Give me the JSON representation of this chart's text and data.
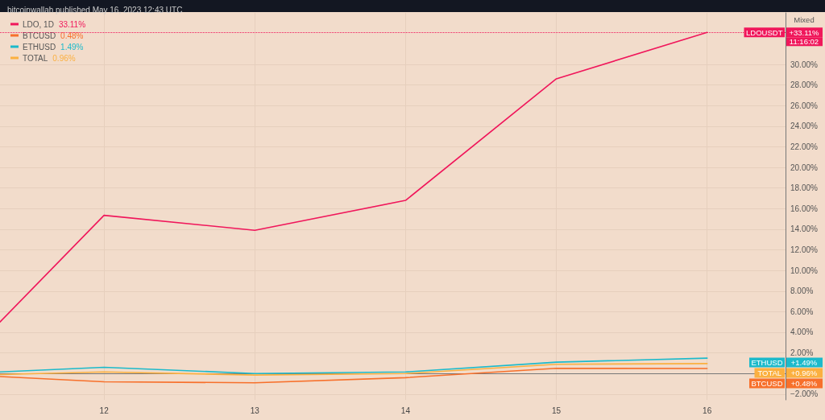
{
  "chart_data": {
    "type": "line",
    "title": "bitcoinwallah published May 16, 2023 12:43 UTC",
    "x": [
      11.31,
      12,
      13,
      14,
      15,
      16
    ],
    "series": [
      {
        "name": "LDO, 1D",
        "color": "#f0175b",
        "values": [
          5.0,
          15.35,
          13.9,
          16.8,
          28.6,
          33.11
        ]
      },
      {
        "name": "BTCUSD",
        "color": "#f7702b",
        "values": [
          -0.3,
          -0.8,
          -0.9,
          -0.4,
          0.5,
          0.48
        ]
      },
      {
        "name": "ETHUSD",
        "color": "#1cbacb",
        "values": [
          0.15,
          0.6,
          0.0,
          0.15,
          1.1,
          1.49
        ]
      },
      {
        "name": "TOTAL",
        "color": "#fbb040",
        "values": [
          -0.1,
          0.15,
          -0.15,
          0.0,
          0.9,
          0.96
        ]
      }
    ],
    "annotations": [
      "33.11%",
      "0.48%",
      "1.49%",
      "0.96%",
      "Mixed",
      "11:16:02",
      "LDOUSDT",
      "+33.11%",
      "BTCUSD",
      "+0.48%",
      "ETHUSD",
      "+1.49%",
      "TOTAL",
      "+0.96%"
    ],
    "ref_lines": [
      {
        "axis": "y",
        "value": 33.11,
        "label": null,
        "color": "#f0175b",
        "line_style": "dotted"
      }
    ],
    "xlim": [
      11.31,
      16.52
    ],
    "xticks": [
      12,
      13,
      14,
      15,
      16
    ],
    "ylim": [
      -2.56,
      35
    ],
    "yticks": [
      {
        "value": -2,
        "label": "−2.00%"
      },
      {
        "value": 2,
        "label": "2.00%"
      },
      {
        "value": 4,
        "label": "4.00%"
      },
      {
        "value": 6,
        "label": "6.00%"
      },
      {
        "value": 8,
        "label": "8.00%"
      },
      {
        "value": 10,
        "label": "10.00%"
      },
      {
        "value": 12,
        "label": "12.00%"
      },
      {
        "value": 14,
        "label": "14.00%"
      },
      {
        "value": 16,
        "label": "16.00%"
      },
      {
        "value": 18,
        "label": "18.00%"
      },
      {
        "value": 20,
        "label": "20.00%"
      },
      {
        "value": 22,
        "label": "22.00%"
      },
      {
        "value": 24,
        "label": "24.00%"
      },
      {
        "value": 26,
        "label": "26.00%"
      },
      {
        "value": 28,
        "label": "28.00%"
      },
      {
        "value": 30,
        "label": "30.00%"
      }
    ],
    "grid": true,
    "legend": "top left",
    "marker": "none",
    "line_style": "solid"
  }
}
